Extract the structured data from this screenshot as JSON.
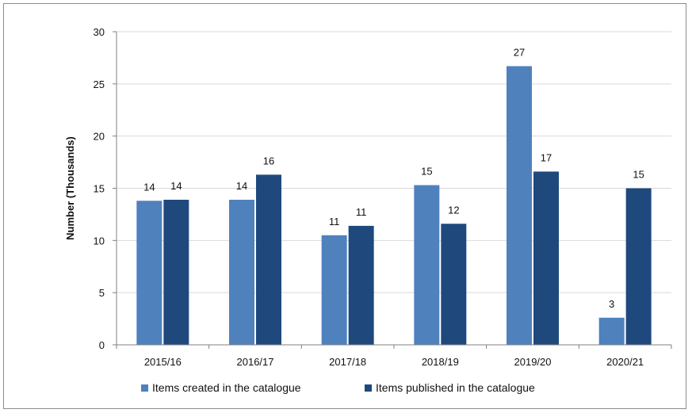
{
  "chart_data": {
    "type": "bar",
    "categories": [
      "2015/16",
      "2016/17",
      "2017/18",
      "2018/19",
      "2019/20",
      "2020/21"
    ],
    "series": [
      {
        "name": "Items created in the catalogue",
        "color": "#4f81bd",
        "values": [
          13.8,
          13.9,
          10.5,
          15.3,
          26.7,
          2.6
        ],
        "labels": [
          "14",
          "14",
          "11",
          "15",
          "27",
          "3"
        ]
      },
      {
        "name": "Items published in the catalogue",
        "color": "#1f497d",
        "values": [
          13.9,
          16.3,
          11.4,
          11.6,
          16.6,
          15.0
        ],
        "labels": [
          "14",
          "16",
          "11",
          "12",
          "17",
          "15"
        ]
      }
    ],
    "ylabel": "Number (Thousands)",
    "ylim": [
      0,
      30
    ],
    "yticks": [
      0,
      5,
      10,
      15,
      20,
      25,
      30
    ],
    "grid": true,
    "legend": "bottom"
  }
}
